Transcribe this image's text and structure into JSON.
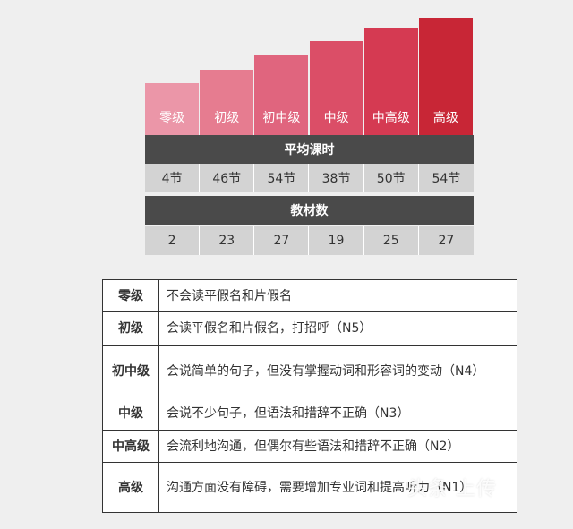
{
  "chart_data": {
    "type": "bar",
    "categories": [
      "零级",
      "初级",
      "初中级",
      "中级",
      "中高级",
      "高级"
    ],
    "bar_colors": [
      "#eb96a8",
      "#e67c90",
      "#e0657e",
      "#db4e67",
      "#d53a52",
      "#c82636"
    ],
    "sections": [
      {
        "title": "平均课时",
        "values": [
          "4节",
          "46节",
          "54节",
          "38节",
          "50节",
          "54节"
        ]
      },
      {
        "title": "教材数",
        "values": [
          "2",
          "23",
          "27",
          "19",
          "25",
          "27"
        ]
      }
    ]
  },
  "levels_table": [
    {
      "level": "零级",
      "description": "不会读平假名和片假名"
    },
    {
      "level": "初级",
      "description": "会读平假名和片假名，打招呼（N5）"
    },
    {
      "level": "初中级",
      "description": "会说简单的句子，但没有掌握动词和形容词的变动（N4）"
    },
    {
      "level": "中级",
      "description": "会说不少句子，但语法和措辞不正确（N3）"
    },
    {
      "level": "中高级",
      "description": "会流利地沟通，但偶尔有些语法和措辞不正确（N2）"
    },
    {
      "level": "高级",
      "description": "沟通方面没有障碍，需要增加专业词和提高听力（N1）"
    }
  ],
  "watermark": "头条 上传"
}
